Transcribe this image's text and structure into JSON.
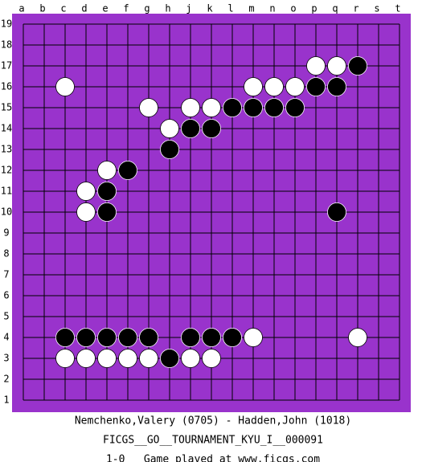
{
  "board": {
    "columns": [
      "a",
      "b",
      "c",
      "d",
      "e",
      "f",
      "g",
      "h",
      "j",
      "k",
      "l",
      "m",
      "n",
      "o",
      "p",
      "q",
      "r",
      "s",
      "t"
    ],
    "rows": [
      19,
      18,
      17,
      16,
      15,
      14,
      13,
      12,
      11,
      10,
      9,
      8,
      7,
      6,
      5,
      4,
      3,
      2,
      1
    ],
    "stones": {
      "black": [
        {
          "col": "r",
          "row": 17
        },
        {
          "col": "p",
          "row": 16
        },
        {
          "col": "q",
          "row": 16
        },
        {
          "col": "l",
          "row": 15
        },
        {
          "col": "m",
          "row": 15
        },
        {
          "col": "n",
          "row": 15
        },
        {
          "col": "o",
          "row": 15
        },
        {
          "col": "j",
          "row": 14
        },
        {
          "col": "k",
          "row": 14
        },
        {
          "col": "h",
          "row": 13
        },
        {
          "col": "f",
          "row": 12
        },
        {
          "col": "e",
          "row": 11
        },
        {
          "col": "e",
          "row": 10
        },
        {
          "col": "q",
          "row": 10
        },
        {
          "col": "c",
          "row": 4
        },
        {
          "col": "d",
          "row": 4
        },
        {
          "col": "e",
          "row": 4
        },
        {
          "col": "f",
          "row": 4
        },
        {
          "col": "g",
          "row": 4
        },
        {
          "col": "j",
          "row": 4
        },
        {
          "col": "k",
          "row": 4
        },
        {
          "col": "l",
          "row": 4
        },
        {
          "col": "h",
          "row": 3
        }
      ],
      "white": [
        {
          "col": "p",
          "row": 17
        },
        {
          "col": "q",
          "row": 17
        },
        {
          "col": "c",
          "row": 16
        },
        {
          "col": "m",
          "row": 16
        },
        {
          "col": "n",
          "row": 16
        },
        {
          "col": "o",
          "row": 16
        },
        {
          "col": "g",
          "row": 15
        },
        {
          "col": "j",
          "row": 15
        },
        {
          "col": "k",
          "row": 15
        },
        {
          "col": "h",
          "row": 14
        },
        {
          "col": "e",
          "row": 12
        },
        {
          "col": "d",
          "row": 11
        },
        {
          "col": "d",
          "row": 10
        },
        {
          "col": "m",
          "row": 4
        },
        {
          "col": "r",
          "row": 4
        },
        {
          "col": "c",
          "row": 3
        },
        {
          "col": "d",
          "row": 3
        },
        {
          "col": "e",
          "row": 3
        },
        {
          "col": "f",
          "row": 3
        },
        {
          "col": "g",
          "row": 3
        },
        {
          "col": "j",
          "row": 3
        },
        {
          "col": "k",
          "row": 3
        }
      ]
    }
  },
  "footer": {
    "players": "Nemchenko,Valery (0705) - Hadden,John (1018)",
    "tournament": "FICGS__GO__TOURNAMENT_KYU_I__000091",
    "result": "1-0   Game played at www.ficgs.com"
  }
}
